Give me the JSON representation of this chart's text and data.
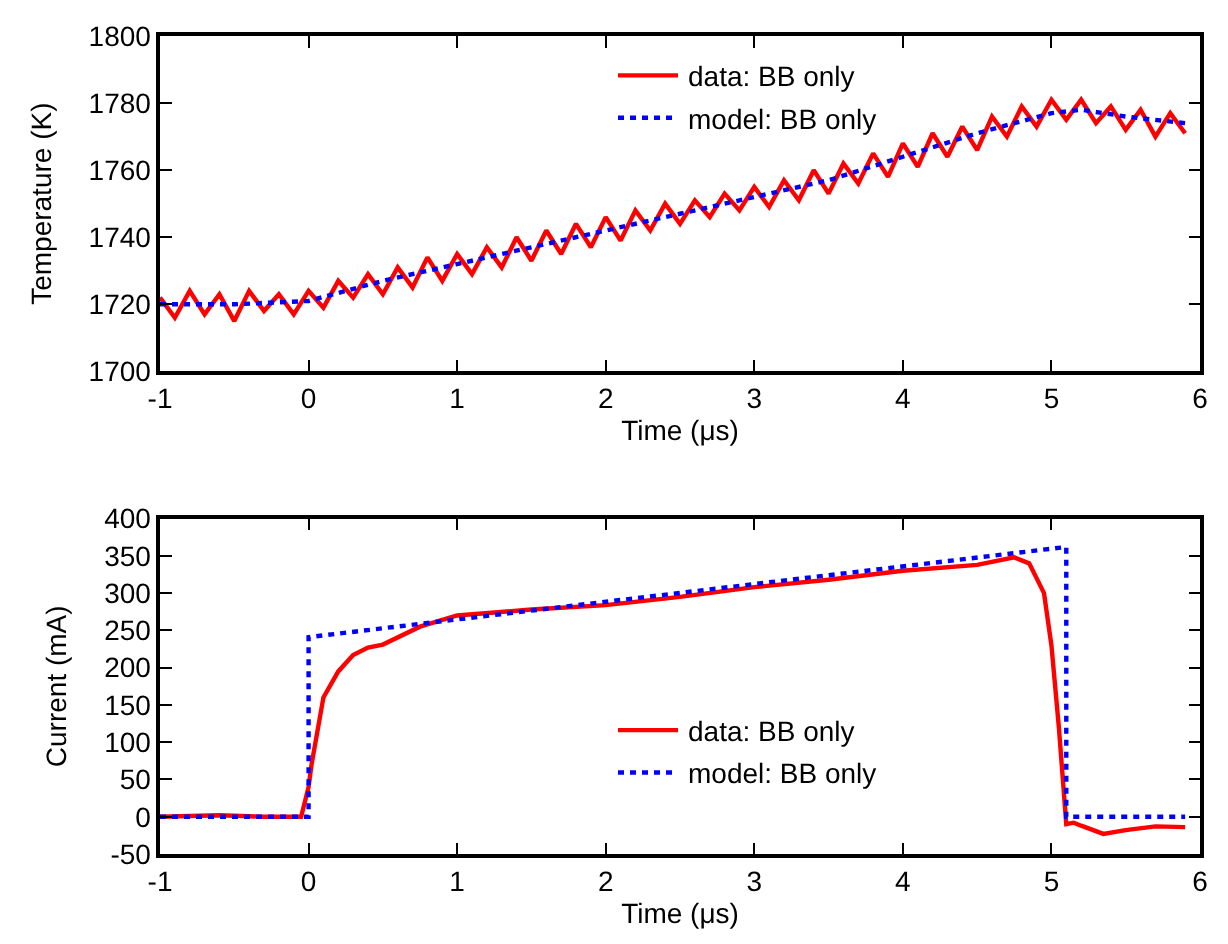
{
  "chart_data": [
    {
      "type": "line",
      "xlabel": "Time (μs)",
      "ylabel": "Temperature (K)",
      "xlim": [
        -1,
        6
      ],
      "xticks": [
        -1,
        0,
        1,
        2,
        3,
        4,
        5,
        6
      ],
      "ylim": [
        1700,
        1800
      ],
      "yticks": [
        1700,
        1720,
        1740,
        1760,
        1780,
        1800
      ],
      "legend": "top",
      "series": [
        {
          "name": "data: BB only",
          "color": "#ff0000",
          "line_style": "solid",
          "x": [
            -1.0,
            -0.9,
            -0.8,
            -0.7,
            -0.6,
            -0.5,
            -0.4,
            -0.3,
            -0.2,
            -0.1,
            0.0,
            0.1,
            0.2,
            0.3,
            0.4,
            0.5,
            0.6,
            0.7,
            0.8,
            0.9,
            1.0,
            1.1,
            1.2,
            1.3,
            1.4,
            1.5,
            1.6,
            1.7,
            1.8,
            1.9,
            2.0,
            2.1,
            2.2,
            2.3,
            2.4,
            2.5,
            2.6,
            2.7,
            2.8,
            2.9,
            3.0,
            3.1,
            3.2,
            3.3,
            3.4,
            3.5,
            3.6,
            3.7,
            3.8,
            3.9,
            4.0,
            4.1,
            4.2,
            4.3,
            4.4,
            4.5,
            4.6,
            4.7,
            4.8,
            4.9,
            5.0,
            5.1,
            5.2,
            5.3,
            5.4,
            5.5,
            5.6,
            5.7,
            5.8,
            5.9
          ],
          "values": [
            1722,
            1716,
            1724,
            1717,
            1723,
            1715,
            1724,
            1718,
            1723,
            1717,
            1724,
            1719,
            1727,
            1722,
            1729,
            1723,
            1731,
            1725,
            1734,
            1727,
            1735,
            1729,
            1737,
            1731,
            1740,
            1733,
            1742,
            1735,
            1744,
            1737,
            1746,
            1739,
            1748,
            1742,
            1750,
            1744,
            1751,
            1746,
            1753,
            1748,
            1755,
            1749,
            1757,
            1751,
            1760,
            1753,
            1762,
            1756,
            1765,
            1758,
            1768,
            1761,
            1771,
            1764,
            1773,
            1766,
            1776,
            1770,
            1779,
            1773,
            1781,
            1775,
            1781,
            1774,
            1779,
            1772,
            1778,
            1770,
            1777,
            1771
          ]
        },
        {
          "name": "model: BB only",
          "color": "#0000ff",
          "line_style": "dotted",
          "x": [
            -1,
            -0.5,
            0,
            0.5,
            1,
            1.5,
            2,
            2.5,
            3,
            3.5,
            4,
            4.5,
            5,
            5.2,
            5.5,
            5.9
          ],
          "values": [
            1720,
            1720,
            1721,
            1727,
            1732,
            1737,
            1742,
            1747,
            1752,
            1757,
            1764,
            1771,
            1777,
            1778,
            1776,
            1774
          ]
        }
      ]
    },
    {
      "type": "line",
      "xlabel": "Time (μs)",
      "ylabel": "Current (mA)",
      "xlim": [
        -1,
        6
      ],
      "xticks": [
        -1,
        0,
        1,
        2,
        3,
        4,
        5,
        6
      ],
      "ylim": [
        -50,
        400
      ],
      "yticks": [
        -50,
        0,
        50,
        100,
        150,
        200,
        250,
        300,
        350,
        400
      ],
      "legend": "bottom",
      "series": [
        {
          "name": "data: BB only",
          "color": "#ff0000",
          "line_style": "solid",
          "x": [
            -1,
            -0.6,
            -0.3,
            -0.05,
            0.0,
            0.02,
            0.1,
            0.2,
            0.3,
            0.4,
            0.5,
            0.75,
            1,
            1.5,
            2,
            2.5,
            3,
            3.5,
            4,
            4.5,
            4.75,
            4.85,
            4.95,
            5.0,
            5.05,
            5.1,
            5.15,
            5.2,
            5.35,
            5.5,
            5.7,
            5.9
          ],
          "values": [
            0,
            2,
            0,
            0,
            40,
            70,
            160,
            195,
            217,
            227,
            231,
            255,
            270,
            278,
            284,
            295,
            308,
            318,
            330,
            338,
            348,
            340,
            300,
            230,
            120,
            -10,
            -8,
            -12,
            -23,
            -18,
            -13,
            -14
          ]
        },
        {
          "name": "model: BB only",
          "color": "#0000ff",
          "line_style": "dotted",
          "x": [
            -1,
            0,
            0,
            5.1,
            5.1,
            5.9
          ],
          "values": [
            0,
            0,
            241,
            362,
            0,
            0
          ]
        }
      ]
    }
  ]
}
